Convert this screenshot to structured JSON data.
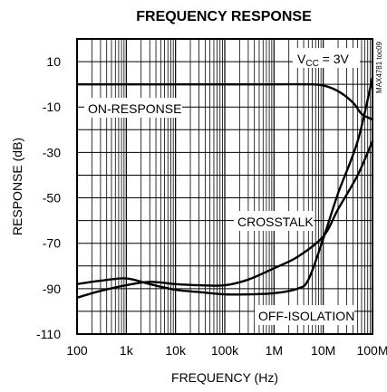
{
  "chart_data": {
    "type": "line",
    "title": "FREQUENCY RESPONSE",
    "xlabel": "FREQUENCY (Hz)",
    "ylabel": "RESPONSE (dB)",
    "x_scale": "log",
    "xlim": [
      100,
      100000000
    ],
    "ylim": [
      -110,
      20
    ],
    "grid": true,
    "x_ticks": [
      100,
      1000,
      10000,
      100000,
      1000000,
      10000000,
      100000000
    ],
    "x_tick_labels": [
      "100",
      "1k",
      "10k",
      "100k",
      "1M",
      "10M",
      "100M"
    ],
    "y_ticks": [
      10,
      -10,
      -30,
      -50,
      -70,
      -90,
      -110
    ],
    "y_tick_labels": [
      "10",
      "-10",
      "-30",
      "-50",
      "-70",
      "-90",
      "-110"
    ],
    "series": [
      {
        "name": "ON-RESPONSE",
        "x": [
          100,
          1000,
          10000,
          100000,
          1000000,
          5000000,
          10000000,
          20000000,
          40000000,
          60000000,
          100000000
        ],
        "y": [
          0,
          0,
          0,
          0,
          0,
          0,
          -0.5,
          -3,
          -8,
          -13,
          -15.5
        ]
      },
      {
        "name": "CROSSTALK",
        "x": [
          100,
          300,
          1000,
          3000,
          10000,
          30000,
          100000,
          300000,
          1000000,
          3000000,
          10000000,
          20000000,
          50000000,
          100000000
        ],
        "y": [
          -94,
          -91,
          -88.5,
          -87,
          -88,
          -88.5,
          -88.5,
          -86,
          -81,
          -76,
          -67,
          -55,
          -40,
          -25
        ]
      },
      {
        "name": "OFF-ISOLATION",
        "x": [
          100,
          300,
          1000,
          3000,
          10000,
          30000,
          100000,
          300000,
          1000000,
          3000000,
          5000000,
          10000000,
          20000000,
          50000000,
          100000000
        ],
        "y": [
          -88,
          -86.5,
          -85.5,
          -88,
          -90.5,
          -91.5,
          -92.5,
          -92.5,
          -92,
          -90,
          -86,
          -68,
          -48,
          -25,
          3
        ]
      }
    ],
    "annotations": {
      "vcc_prefix": "V",
      "vcc_sub": "CC",
      "vcc_suffix": " = 3V",
      "on_response": "ON-RESPONSE",
      "crosstalk": "CROSSTALK",
      "off_isolation": "OFF-ISOLATION",
      "figure_id": "MAX4781 toc09"
    }
  }
}
